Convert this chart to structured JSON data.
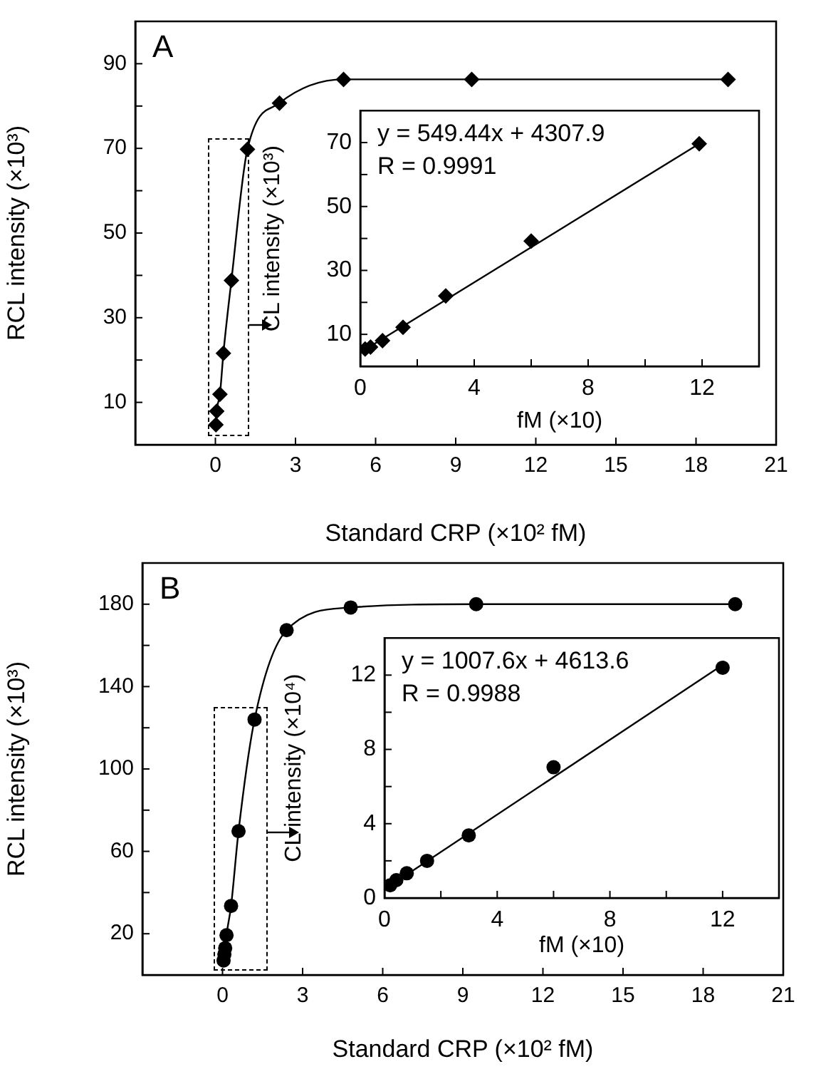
{
  "chart_data": [
    {
      "type": "line",
      "xlabel": "Standard CRP (×10² fM)",
      "ylabel": "RCL intensity (×10³)",
      "marker": "diamond",
      "annotations": [
        "A"
      ],
      "x": [
        0.02,
        0.05,
        0.17,
        0.3,
        0.6,
        1.2,
        2.4,
        4.8,
        9.6,
        19.2
      ],
      "series": [
        {
          "color": "#000000",
          "values": [
            4.7,
            7.9,
            11.9,
            21.6,
            38.8,
            69.8,
            80.7,
            86.3,
            86.3,
            86.3
          ]
        }
      ],
      "xlim": [
        -3,
        21
      ],
      "xticks": [
        0,
        3,
        6,
        9,
        12,
        15,
        18,
        21
      ],
      "ylim": [
        0,
        100
      ],
      "yticks": [
        10,
        {
          "value": 20,
          "label": null
        },
        30,
        {
          "value": 40,
          "label": null
        },
        50,
        {
          "value": 60,
          "label": null
        },
        70,
        {
          "value": 80,
          "label": null
        },
        90
      ]
    },
    {
      "type": "scatter",
      "xlabel": "fM (×10)",
      "ylabel": "CL intensity (×10³)",
      "marker": "diamond",
      "annotations": [
        "y = 549.44x + 4307.9",
        "R = 0.9991"
      ],
      "series": [
        {
          "color": "#000000",
          "x": [
            0.17,
            0.36,
            0.78,
            1.5,
            3.0,
            6.0,
            11.9
          ],
          "values": [
            5.4,
            6,
            8,
            12.2,
            22,
            39.2,
            69.6
          ]
        },
        {
          "type": "line",
          "marker": "none",
          "color": "#000000",
          "x": [
            0.2,
            12
          ],
          "values": [
            5.4,
            70.2
          ]
        }
      ],
      "xlim": [
        0,
        14
      ],
      "xticks": [
        0,
        {
          "value": 2,
          "label": null
        },
        4,
        {
          "value": 6,
          "label": null
        },
        8,
        {
          "value": 10,
          "label": null
        },
        12
      ],
      "ylim": [
        0,
        80
      ],
      "yticks": [
        10,
        {
          "value": 20,
          "label": null
        },
        30,
        {
          "value": 40,
          "label": null
        },
        50,
        {
          "value": 60,
          "label": null
        },
        70
      ]
    },
    {
      "type": "line",
      "xlabel": "Standard CRP (×10² fM)",
      "ylabel": "RCL intensity (×10³)",
      "marker": "circle",
      "annotations": [
        "B"
      ],
      "x": [
        0.04,
        0.07,
        0.1,
        0.15,
        0.32,
        0.6,
        1.2,
        2.4,
        4.8,
        9.5,
        19.2
      ],
      "series": [
        {
          "color": "#000000",
          "values": [
            7,
            10,
            13,
            19.3,
            33.5,
            69.8,
            124,
            167.4,
            178.4,
            180,
            180
          ]
        }
      ],
      "xlim": [
        -3,
        21
      ],
      "xticks": [
        0,
        3,
        6,
        9,
        12,
        15,
        18,
        21
      ],
      "ylim": [
        0,
        200
      ],
      "yticks": [
        20,
        {
          "value": 40,
          "label": null
        },
        60,
        {
          "value": 80,
          "label": null
        },
        100,
        {
          "value": 120,
          "label": null
        },
        140,
        {
          "value": 160,
          "label": null
        },
        180
      ]
    },
    {
      "type": "scatter",
      "xlabel": "fM (×10)",
      "ylabel": "CL intensity (×10⁴)",
      "marker": "circle",
      "annotations": [
        "y = 1007.6x + 4613.6",
        "R = 0.9988"
      ],
      "series": [
        {
          "color": "#000000",
          "x": [
            0.2,
            0.42,
            0.79,
            1.51,
            2.99,
            6.0,
            12
          ],
          "values": [
            0.68,
            0.96,
            1.33,
            2.0,
            3.37,
            7.04,
            12.4
          ]
        },
        {
          "type": "line",
          "marker": "none",
          "color": "#000000",
          "x": [
            0.2,
            12
          ],
          "values": [
            0.66,
            12.55
          ]
        }
      ],
      "xlim": [
        0,
        14
      ],
      "xticks": [
        0,
        {
          "value": 2,
          "label": null
        },
        4,
        {
          "value": 6,
          "label": null
        },
        8,
        {
          "value": 10,
          "label": null
        },
        12
      ],
      "ylim": [
        0,
        14
      ],
      "yticks": [
        0,
        {
          "value": 2,
          "label": null
        },
        4,
        {
          "value": 6,
          "label": null
        },
        8,
        {
          "value": 10,
          "label": null
        },
        12
      ]
    }
  ]
}
